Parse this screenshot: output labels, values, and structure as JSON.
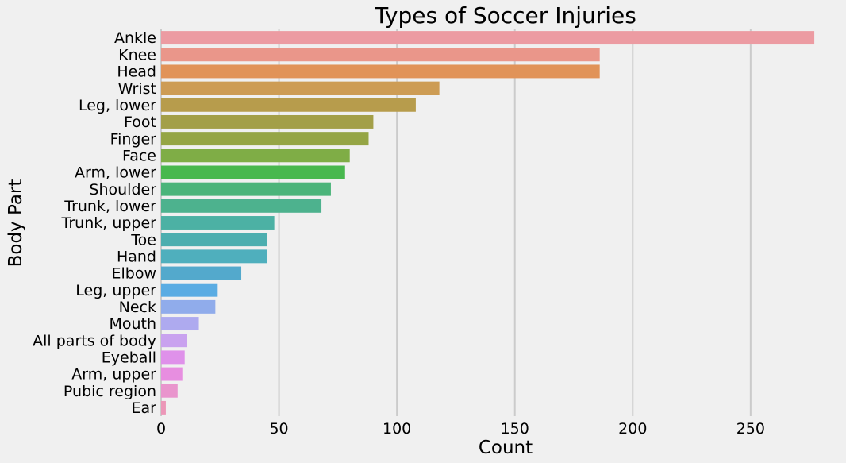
{
  "chart_data": {
    "type": "bar",
    "orientation": "horizontal",
    "title": "Types of Soccer Injuries",
    "xlabel": "Count",
    "ylabel": "Body Part",
    "xlim": [
      0,
      280
    ],
    "xticks": [
      0,
      50,
      100,
      150,
      200,
      250
    ],
    "grid": true,
    "categories": [
      "Ankle",
      "Knee",
      "Head",
      "Wrist",
      "Leg, lower",
      "Foot",
      "Finger",
      "Face",
      "Arm, lower",
      "Shoulder",
      "Trunk, lower",
      "Trunk, upper",
      "Toe",
      "Hand",
      "Elbow",
      "Leg, upper",
      "Neck",
      "Mouth",
      "All parts of body",
      "Eyeball",
      "Arm, upper",
      "Pubic region",
      "Ear"
    ],
    "values": [
      277,
      186,
      186,
      118,
      108,
      90,
      88,
      80,
      78,
      72,
      68,
      48,
      45,
      45,
      34,
      24,
      23,
      16,
      11,
      10,
      9,
      7,
      2
    ],
    "colors": [
      "#ec9ba2",
      "#ea968a",
      "#e19358",
      "#cd9c54",
      "#b79c4c",
      "#a39f48",
      "#95a545",
      "#7fad46",
      "#48b84e",
      "#4bb47a",
      "#4db28e",
      "#4cb1a4",
      "#4caeaf",
      "#4fafbd",
      "#53a9cc",
      "#5aace3",
      "#90aceb",
      "#aeaaef",
      "#c9a2ef",
      "#df91ea",
      "#e78ee0",
      "#e995cd",
      "#ec97b8"
    ]
  }
}
